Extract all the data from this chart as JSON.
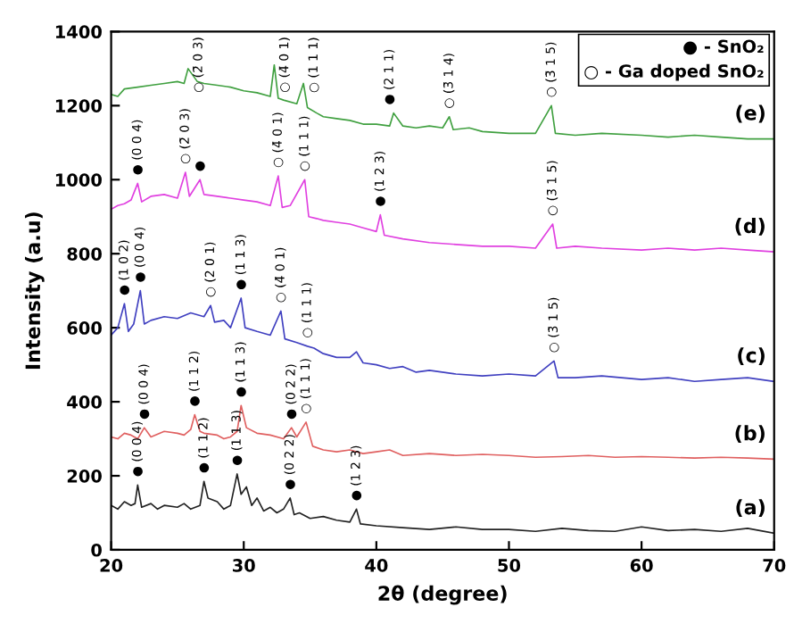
{
  "chart_data": {
    "type": "line",
    "xlabel": "2θ (degree)",
    "ylabel": "Intensity (a.u)",
    "xlim": [
      20,
      70
    ],
    "ylim": [
      0,
      1400
    ],
    "xticks": [
      20,
      30,
      40,
      50,
      60,
      70
    ],
    "yticks": [
      0,
      200,
      400,
      600,
      800,
      1000,
      1200,
      1400
    ],
    "grid": false,
    "series": [
      {
        "name": "(a)",
        "color": "#222222",
        "x": [
          20,
          20.5,
          21,
          21.5,
          21.8,
          22,
          22.3,
          23,
          23.5,
          24,
          25,
          25.5,
          26,
          26.7,
          27,
          27.3,
          28,
          28.5,
          29,
          29.5,
          29.8,
          30.2,
          30.6,
          31,
          31.5,
          32,
          32.5,
          33,
          33.5,
          33.8,
          34.2,
          35,
          36,
          37,
          38,
          38.5,
          38.8,
          40,
          42,
          44,
          46,
          48,
          50,
          52,
          54,
          56,
          58,
          60,
          62,
          64,
          66,
          68,
          70
        ],
        "values": [
          120,
          110,
          130,
          120,
          125,
          175,
          115,
          125,
          110,
          120,
          115,
          125,
          110,
          120,
          185,
          140,
          130,
          110,
          120,
          205,
          150,
          170,
          120,
          140,
          105,
          115,
          100,
          110,
          140,
          95,
          100,
          85,
          90,
          80,
          75,
          110,
          70,
          65,
          60,
          55,
          62,
          55,
          55,
          50,
          58,
          52,
          50,
          62,
          52,
          55,
          50,
          58,
          45
        ]
      },
      {
        "name": "(b)",
        "color": "#e06060",
        "x": [
          20,
          20.5,
          21,
          21.5,
          22,
          22.5,
          23,
          24,
          25,
          25.5,
          26,
          26.3,
          26.7,
          27,
          28,
          28.5,
          29,
          29.5,
          29.8,
          30.2,
          31,
          32,
          33,
          33.6,
          34,
          34.7,
          35.2,
          36,
          37,
          38,
          39,
          40,
          41,
          42,
          44,
          46,
          48,
          50,
          52,
          54,
          56,
          58,
          60,
          62,
          64,
          66,
          68,
          70
        ],
        "values": [
          305,
          300,
          315,
          310,
          300,
          330,
          305,
          320,
          315,
          310,
          325,
          365,
          320,
          315,
          310,
          300,
          305,
          320,
          390,
          330,
          315,
          310,
          300,
          330,
          305,
          345,
          280,
          270,
          265,
          270,
          260,
          265,
          270,
          255,
          260,
          255,
          258,
          255,
          250,
          252,
          255,
          250,
          252,
          250,
          248,
          250,
          248,
          245
        ]
      },
      {
        "name": "(c)",
        "color": "#4040c0",
        "x": [
          20,
          20.5,
          21,
          21.3,
          21.7,
          22.2,
          22.5,
          23,
          24,
          25,
          26,
          27,
          27.5,
          27.8,
          28.5,
          29,
          29.8,
          30.1,
          31,
          32,
          32.8,
          33.1,
          34,
          34.8,
          35.3,
          36,
          37,
          38,
          38.5,
          39,
          40,
          41,
          42,
          43,
          44,
          46,
          48,
          50,
          52,
          53.4,
          53.7,
          55,
          57,
          60,
          62,
          64,
          66,
          68,
          70
        ],
        "values": [
          580,
          600,
          665,
          590,
          610,
          700,
          610,
          620,
          630,
          625,
          640,
          630,
          660,
          615,
          620,
          600,
          680,
          600,
          590,
          580,
          645,
          570,
          560,
          550,
          545,
          530,
          520,
          520,
          535,
          505,
          500,
          490,
          495,
          480,
          485,
          475,
          470,
          475,
          470,
          510,
          465,
          465,
          470,
          460,
          465,
          455,
          460,
          465,
          455
        ]
      },
      {
        "name": "(d)",
        "color": "#e040e0",
        "x": [
          20,
          20.5,
          21,
          21.5,
          22,
          22.3,
          23,
          24,
          25,
          25.6,
          25.9,
          26.7,
          27,
          28,
          29,
          30,
          31,
          32,
          32.6,
          32.9,
          33.5,
          34.6,
          34.9,
          35.5,
          36,
          37,
          38,
          39,
          40,
          40.3,
          40.6,
          42,
          44,
          46,
          48,
          50,
          52,
          53.3,
          53.6,
          55,
          57,
          60,
          62,
          64,
          66,
          68,
          70
        ],
        "values": [
          920,
          930,
          935,
          945,
          990,
          940,
          955,
          960,
          950,
          1020,
          955,
          1000,
          960,
          955,
          950,
          945,
          940,
          930,
          1010,
          925,
          930,
          1000,
          900,
          895,
          890,
          885,
          880,
          870,
          860,
          905,
          850,
          840,
          830,
          825,
          820,
          820,
          815,
          880,
          815,
          820,
          815,
          810,
          815,
          810,
          815,
          810,
          805
        ]
      },
      {
        "name": "(e)",
        "color": "#40a040",
        "x": [
          20,
          20.5,
          21,
          22,
          23,
          24,
          25,
          25.5,
          25.8,
          26.5,
          27,
          28,
          29,
          30,
          31,
          32,
          32.3,
          32.6,
          33,
          34,
          34.5,
          34.8,
          35.5,
          36,
          37,
          38,
          39,
          40,
          41,
          41.3,
          42,
          43,
          44,
          45,
          45.5,
          45.8,
          47,
          48,
          50,
          52,
          53.2,
          53.5,
          55,
          57,
          60,
          62,
          64,
          66,
          68,
          70
        ],
        "values": [
          1230,
          1225,
          1245,
          1250,
          1255,
          1260,
          1265,
          1260,
          1300,
          1265,
          1260,
          1255,
          1250,
          1240,
          1235,
          1225,
          1310,
          1220,
          1215,
          1205,
          1260,
          1195,
          1180,
          1170,
          1165,
          1160,
          1150,
          1150,
          1145,
          1180,
          1145,
          1140,
          1145,
          1140,
          1170,
          1135,
          1140,
          1130,
          1125,
          1125,
          1200,
          1125,
          1120,
          1125,
          1120,
          1115,
          1120,
          1115,
          1110,
          1110
        ]
      }
    ],
    "annotations": [
      "● - SnO₂",
      "○ - Ga doped SnO₂",
      {
        "text": "● (0 0 4)",
        "x": 22,
        "y": 175
      },
      {
        "text": "● (1 1 2)",
        "x": 27,
        "y": 185
      },
      {
        "text": "● (1 1 3)",
        "x": 29.5,
        "y": 205
      },
      {
        "text": "● (0 2 2)",
        "x": 33.5,
        "y": 140
      },
      {
        "text": "● (1 2 3)",
        "x": 38.5,
        "y": 110
      },
      {
        "text": "● (0 0 4)",
        "x": 22.5,
        "y": 330
      },
      {
        "text": "● (1 1 2)",
        "x": 26.3,
        "y": 365
      },
      {
        "text": "● (1 1 3)",
        "x": 29.8,
        "y": 390
      },
      {
        "text": "● (0 2 2)",
        "x": 33.6,
        "y": 330
      },
      {
        "text": "○ (1 1 1)",
        "x": 34.7,
        "y": 345
      },
      {
        "text": "● (1 0 2)",
        "x": 21,
        "y": 665
      },
      {
        "text": "● (0 0 4)",
        "x": 22.2,
        "y": 700
      },
      {
        "text": "○ (2 0 1)",
        "x": 27.5,
        "y": 660
      },
      {
        "text": "● (1 1 3)",
        "x": 29.8,
        "y": 680
      },
      {
        "text": "○ (4̄ 0 1)",
        "x": 32.8,
        "y": 645
      },
      {
        "text": "○ (1 1 1)",
        "x": 34.8,
        "y": 550
      },
      {
        "text": "○ (3̄ 1 5)",
        "x": 53.4,
        "y": 510
      },
      {
        "text": "● (0 0 4)",
        "x": 22,
        "y": 990
      },
      {
        "text": "○ (2̄ 0 3)",
        "x": 25.6,
        "y": 1020
      },
      {
        "text": "●",
        "x": 26.7,
        "y": 1000
      },
      {
        "text": "○ (4̄ 0 1)",
        "x": 32.6,
        "y": 1010
      },
      {
        "text": "○ (1 1 1)",
        "x": 34.6,
        "y": 1000
      },
      {
        "text": "● (1 2 3)",
        "x": 40.3,
        "y": 905
      },
      {
        "text": "○ (3̄ 1 5)",
        "x": 53.3,
        "y": 880
      },
      {
        "text": "○ (2̄ 0 3)",
        "x": 25.8,
        "y": 1300
      },
      {
        "text": "○ (4̄ 0 1)",
        "x": 32.3,
        "y": 1310
      },
      {
        "text": "○ (1 1 1)",
        "x": 34.5,
        "y": 1260
      },
      {
        "text": "● (2 1 1)",
        "x": 41,
        "y": 1180
      },
      {
        "text": "○ (3̄ 1 4)",
        "x": 45.5,
        "y": 1170
      },
      {
        "text": "○ (3̄ 1 5)",
        "x": 53.2,
        "y": 1200
      }
    ]
  }
}
